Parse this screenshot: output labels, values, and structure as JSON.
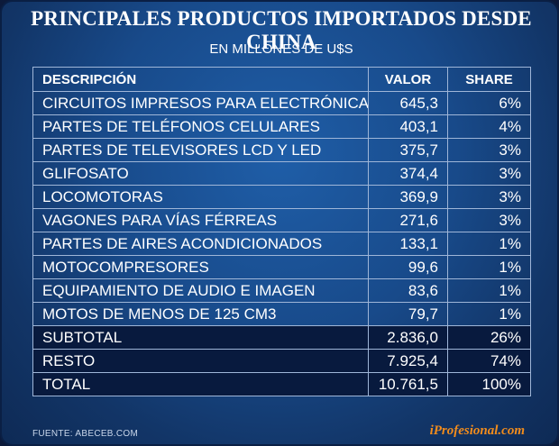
{
  "title": "PRINCIPALES PRODUCTOS IMPORTADOS DESDE CHINA",
  "subtitle": "EN MILLONES DE U$S",
  "table": {
    "headers": [
      "DESCRIPCIÓN",
      "VALOR",
      "SHARE"
    ],
    "rows": [
      [
        "CIRCUITOS IMPRESOS PARA ELECTRÓNICA",
        "645,3",
        "6%"
      ],
      [
        "PARTES DE TELÉFONOS CELULARES",
        "403,1",
        "4%"
      ],
      [
        "PARTES DE TELEVISORES LCD Y LED",
        "375,7",
        "3%"
      ],
      [
        "GLIFOSATO",
        "374,4",
        "3%"
      ],
      [
        "LOCOMOTORAS",
        "369,9",
        "3%"
      ],
      [
        "VAGONES PARA VÍAS FÉRREAS",
        "271,6",
        "3%"
      ],
      [
        "PARTES DE AIRES ACONDICIONADOS",
        "133,1",
        "1%"
      ],
      [
        "MOTOCOMPRESORES",
        "99,6",
        "1%"
      ],
      [
        "EQUIPAMIENTO DE AUDIO E IMAGEN",
        "83,6",
        "1%"
      ],
      [
        "MOTOS DE MENOS DE 125 CM3",
        "79,7",
        "1%"
      ]
    ],
    "totals": [
      [
        "SUBTOTAL",
        "2.836,0",
        "26%"
      ],
      [
        "RESTO",
        "7.925,4",
        "74%"
      ],
      [
        "TOTAL",
        "10.761,5",
        "100%"
      ]
    ]
  },
  "footer": {
    "source": "FUENTE: ABECEB.COM",
    "brand": "iProfesional.com"
  },
  "colors": {
    "background": "#184a8a",
    "dark_row": "#081a3e",
    "brand": "#f28c1c"
  }
}
